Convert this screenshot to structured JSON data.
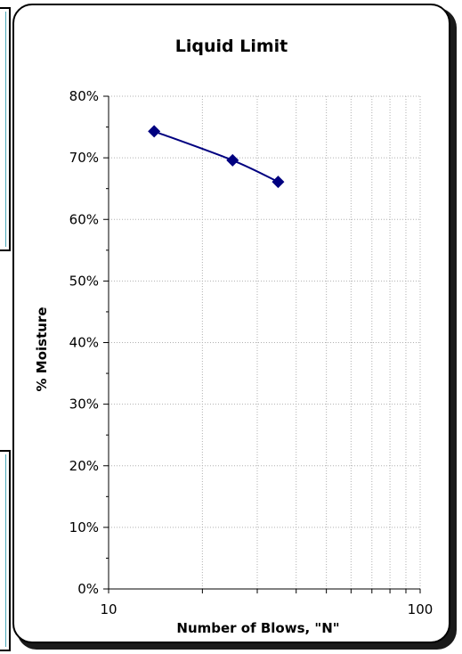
{
  "chart_data": {
    "type": "scatter",
    "title": "Liquid Limit",
    "xlabel": "Number of Blows, \"N\"",
    "ylabel": "% Moisture",
    "x_scale": "log",
    "xlim": [
      10,
      100
    ],
    "ylim": [
      0,
      0.8
    ],
    "y_ticks": [
      0,
      0.1,
      0.2,
      0.3,
      0.4,
      0.5,
      0.6,
      0.7,
      0.8
    ],
    "y_tick_labels": [
      "0%",
      "10%",
      "20%",
      "30%",
      "40%",
      "50%",
      "60%",
      "70%",
      "80%"
    ],
    "x_tick_labels": [
      "10",
      "100"
    ],
    "grid": true,
    "series": [
      {
        "x": [
          14,
          25,
          35
        ],
        "y": [
          0.743,
          0.696,
          0.661
        ],
        "marker": "diamond",
        "color": "#000080",
        "trendline": true
      }
    ]
  }
}
